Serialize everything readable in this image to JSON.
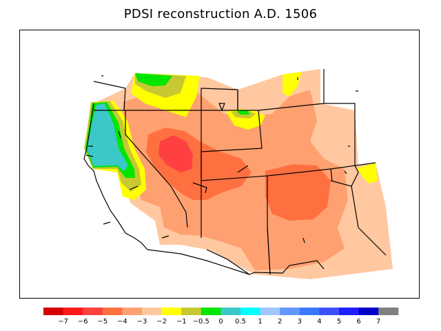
{
  "title": "PDSI reconstruction A.D. 1506",
  "colors": {
    "cls_le_-7": "#d40000",
    "cls_-7_-6": "#ff1a1a",
    "cls_-6_-5": "#ff4040",
    "cls_-5_-4": "#ff7040",
    "cls_-4_-3": "#ffa070",
    "cls_-3_-2": "#ffc8a0",
    "cls_-2_-1": "#ffff00",
    "cls_-1_-0.5": "#c8c832",
    "cls_-0.5_0": "#00e600",
    "cls_0_0.5": "#3cc8c8",
    "cls_0.5_1": "#00ffff",
    "cls_1_2": "#a0c8ff",
    "cls_2_3": "#6496ff",
    "cls_3_4": "#3c78ff",
    "cls_4_5": "#3c50ff",
    "cls_5_6": "#1e1eff",
    "cls_6_7": "#0000c8",
    "cls_ge_7": "#808080"
  },
  "colorbar": {
    "tick_labels": [
      "−7",
      "−6",
      "−5",
      "−4",
      "−3",
      "−2",
      "−1",
      "−0.5",
      "0",
      "0.5",
      "1",
      "2",
      "3",
      "4",
      "5",
      "6",
      "7"
    ]
  },
  "map": {
    "region": "western United States",
    "regions_by_class": {
      "core_extreme_drought": "cls_-6_-5",
      "severe_drought": "cls_-5_-4",
      "moderate_drought": "cls_-4_-3",
      "mild_drought": "cls_-3_-2",
      "incipient_drought": "cls_-2_-1",
      "near_normal_dry": "cls_-1_-0.5",
      "near_normal": "cls_-0.5_0",
      "slightly_wet": "cls_0_0.5"
    }
  }
}
